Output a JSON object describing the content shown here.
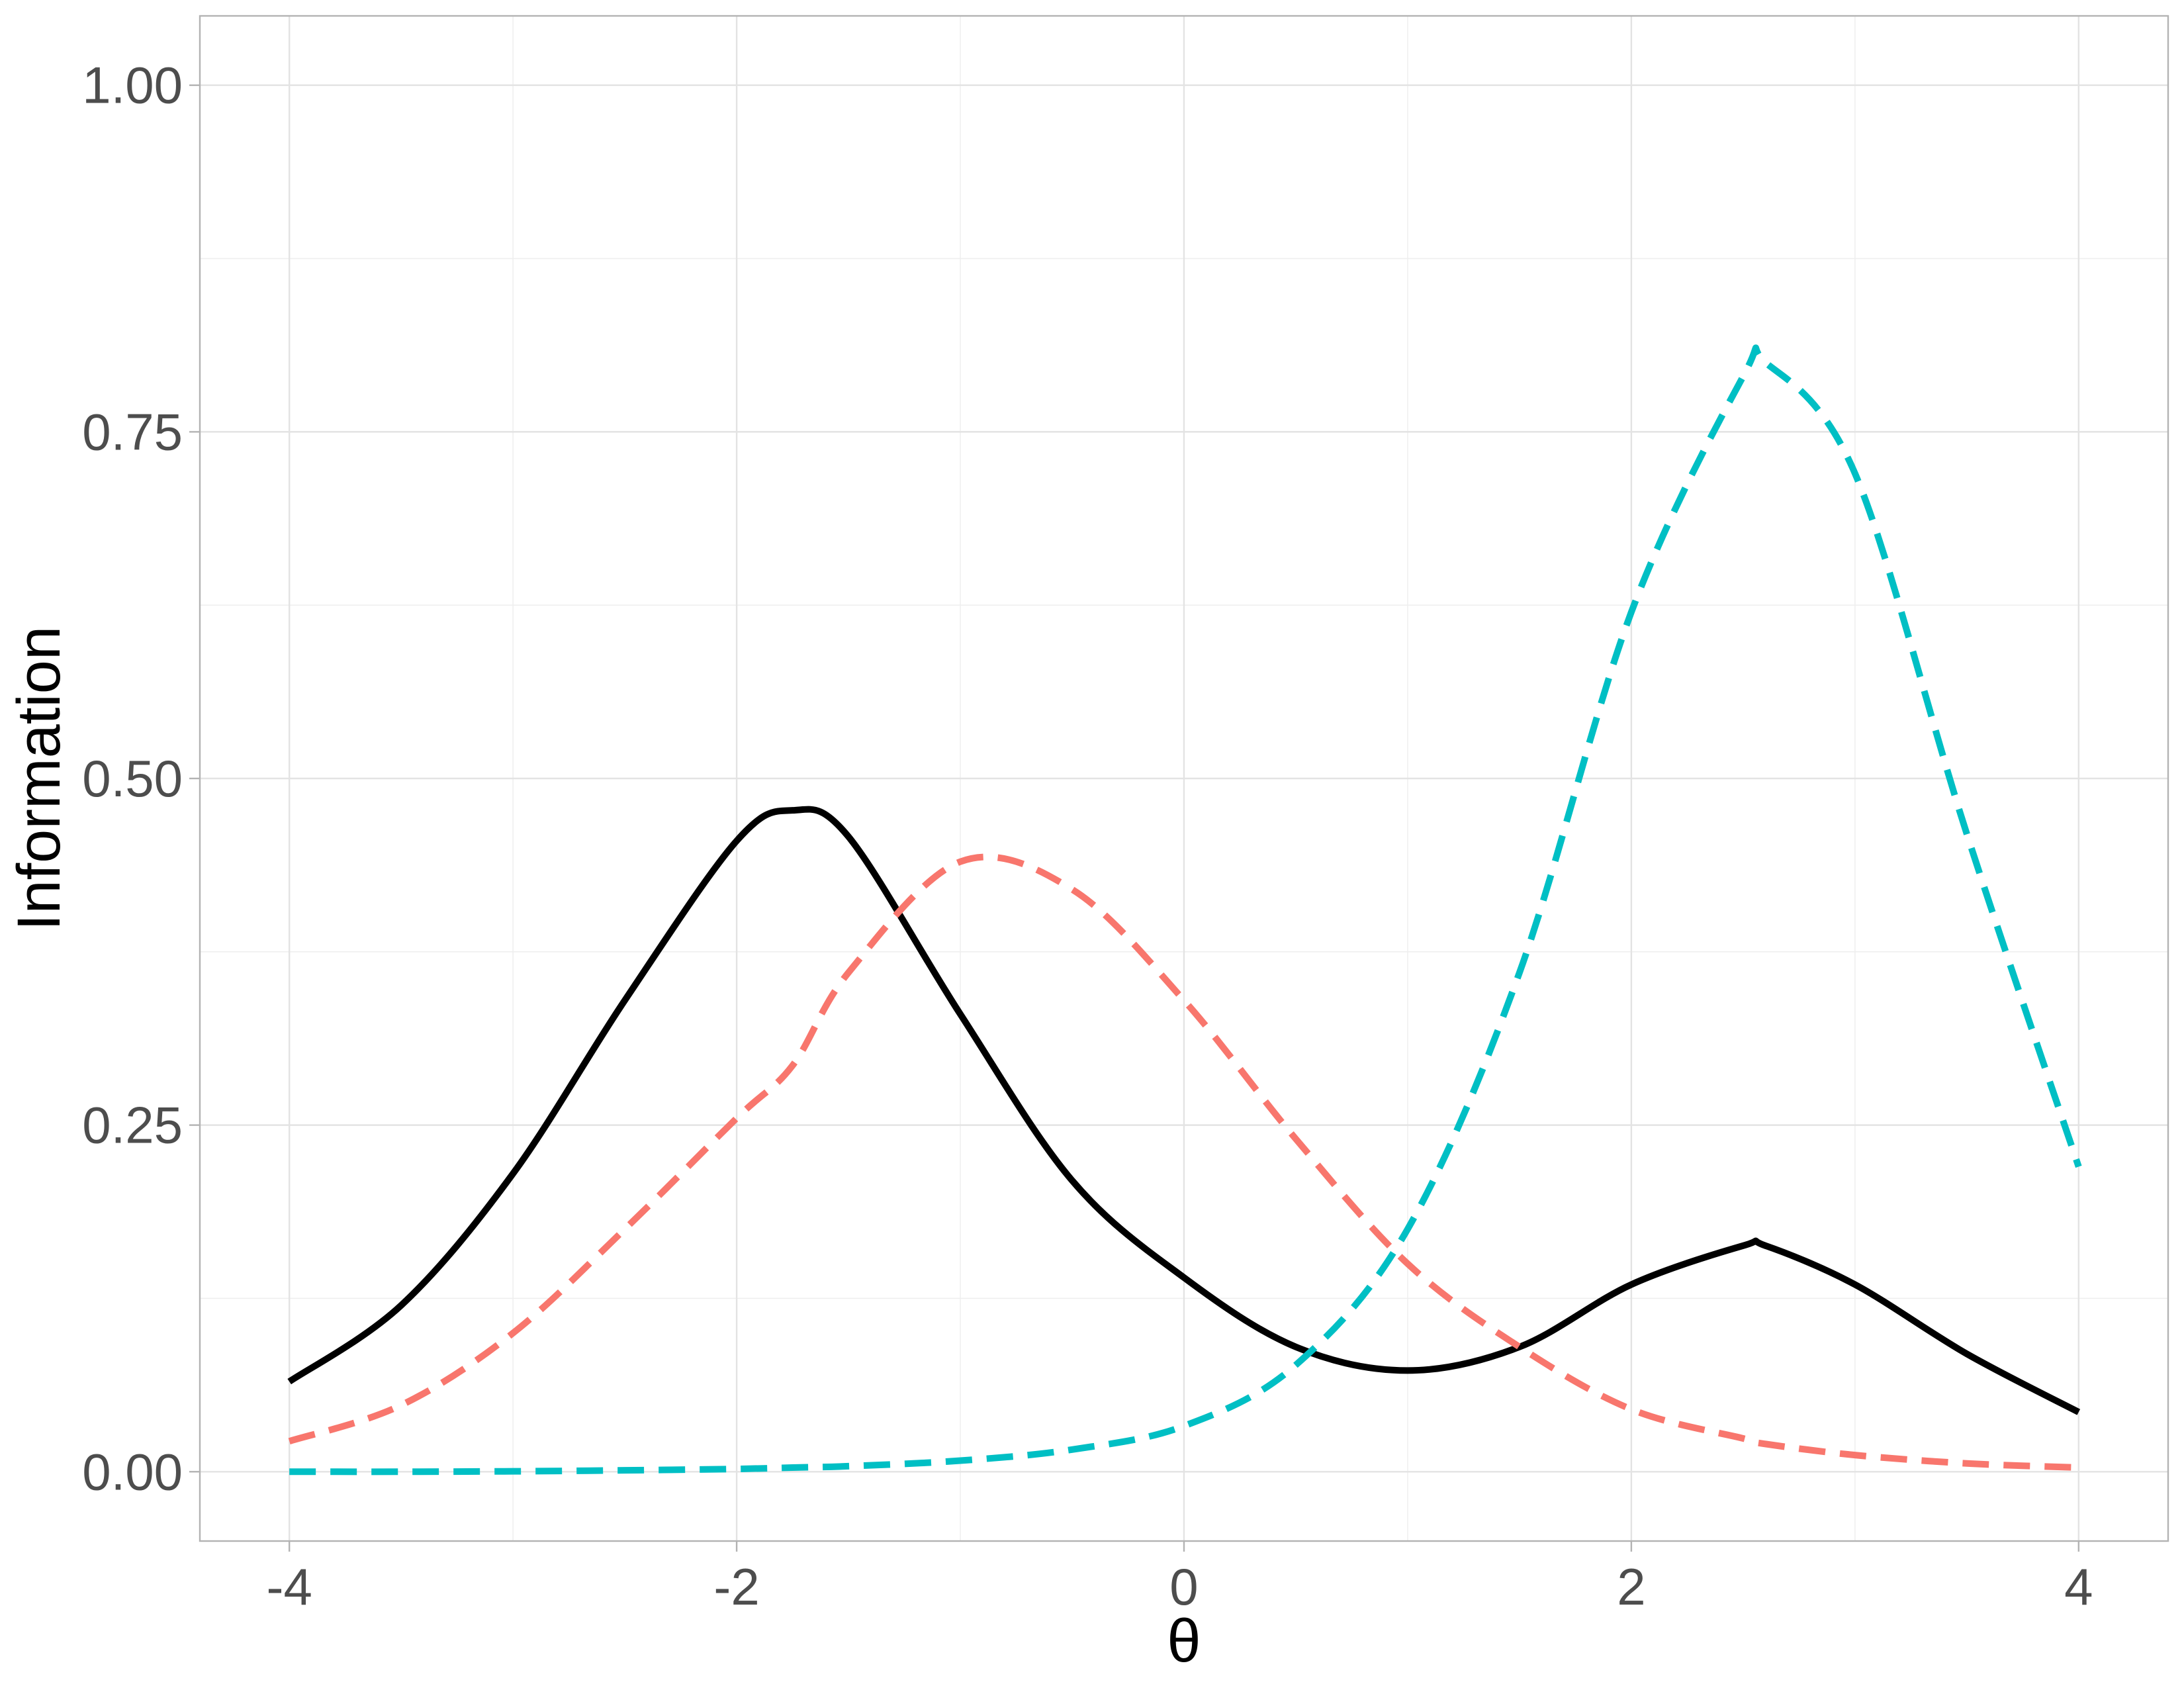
{
  "chart_data": {
    "type": "line",
    "title": "",
    "xlabel": "θ",
    "ylabel": "Information",
    "xlim": [
      -4.4,
      4.4
    ],
    "ylim": [
      -0.05,
      1.05
    ],
    "x_ticks": [
      -4,
      -2,
      0,
      2,
      4
    ],
    "x_tick_labels": [
      "-4",
      "-2",
      "0",
      "2",
      "4"
    ],
    "y_ticks": [
      0,
      0.25,
      0.5,
      0.75,
      1.0
    ],
    "y_tick_labels": [
      "0.00",
      "0.25",
      "0.50",
      "0.75",
      "1.00"
    ],
    "grid": true,
    "legend": "none",
    "x": [
      -4.0,
      -3.5,
      -3.0,
      -2.5,
      -2.0,
      -1.75,
      -1.5,
      -1.0,
      -0.5,
      0.0,
      0.5,
      1.0,
      1.5,
      2.0,
      2.5,
      2.6,
      3.0,
      3.5,
      4.0
    ],
    "series": [
      {
        "color": "#000000",
        "dash": "solid",
        "values": [
          0.065,
          0.12,
          0.215,
          0.34,
          0.455,
          0.477,
          0.458,
          0.33,
          0.21,
          0.14,
          0.09,
          0.073,
          0.09,
          0.135,
          0.163,
          0.163,
          0.135,
          0.085,
          0.043
        ]
      },
      {
        "color": "#F8766D",
        "dash": "dashed",
        "values": [
          0.022,
          0.048,
          0.1,
          0.175,
          0.255,
          0.293,
          0.36,
          0.44,
          0.42,
          0.34,
          0.24,
          0.15,
          0.09,
          0.045,
          0.024,
          0.02,
          0.012,
          0.006,
          0.003
        ]
      },
      {
        "color": "#00BFC4",
        "dash": "dashed",
        "values": [
          0.0,
          0.0,
          0.0003,
          0.001,
          0.002,
          0.003,
          0.004,
          0.008,
          0.016,
          0.033,
          0.077,
          0.175,
          0.36,
          0.62,
          0.79,
          0.8,
          0.72,
          0.46,
          0.22
        ]
      }
    ]
  }
}
